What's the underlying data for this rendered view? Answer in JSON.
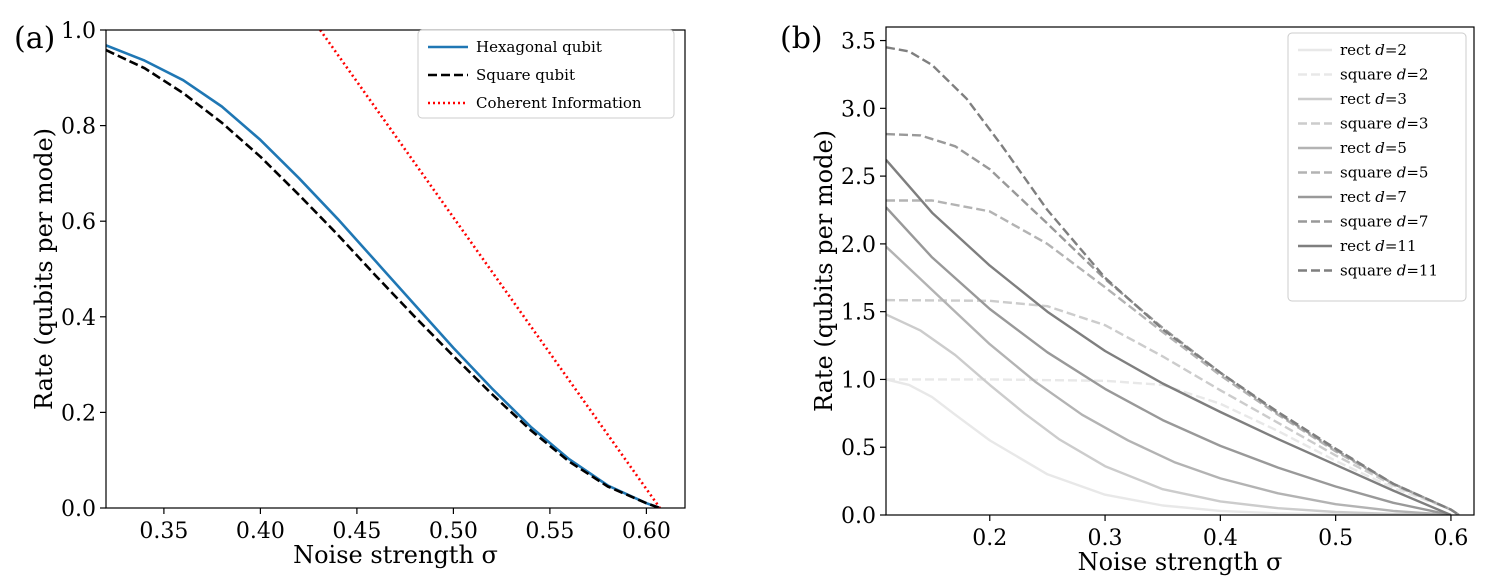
{
  "chart_data": [
    {
      "panel": "(a)",
      "type": "line",
      "xlabel": "Noise strength σ",
      "ylabel": "Rate (qubits per mode)",
      "xlim": [
        0.32,
        0.62
      ],
      "ylim": [
        0.0,
        1.0
      ],
      "xticks": [
        0.35,
        0.4,
        0.45,
        0.5,
        0.55,
        0.6
      ],
      "xtick_labels": [
        "0.35",
        "0.40",
        "0.45",
        "0.50",
        "0.55",
        "0.60"
      ],
      "yticks": [
        0.0,
        0.2,
        0.4,
        0.6,
        0.8,
        1.0
      ],
      "ytick_labels": [
        "0.0",
        "0.2",
        "0.4",
        "0.6",
        "0.8",
        "1.0"
      ],
      "legend_position": "top-right",
      "series": [
        {
          "name": "Hexagonal qubit",
          "color": "#1f77b4",
          "dash": "solid",
          "x": [
            0.32,
            0.34,
            0.36,
            0.38,
            0.4,
            0.42,
            0.44,
            0.46,
            0.48,
            0.5,
            0.52,
            0.54,
            0.56,
            0.58,
            0.6,
            0.607
          ],
          "y": [
            0.968,
            0.936,
            0.895,
            0.84,
            0.77,
            0.69,
            0.605,
            0.515,
            0.425,
            0.335,
            0.25,
            0.17,
            0.102,
            0.047,
            0.01,
            0.0
          ]
        },
        {
          "name": "Square qubit",
          "color": "#000000",
          "dash": "dashed",
          "x": [
            0.32,
            0.34,
            0.36,
            0.38,
            0.4,
            0.42,
            0.44,
            0.46,
            0.48,
            0.5,
            0.52,
            0.54,
            0.56,
            0.58,
            0.6,
            0.607
          ],
          "y": [
            0.958,
            0.92,
            0.868,
            0.806,
            0.735,
            0.655,
            0.572,
            0.485,
            0.4,
            0.318,
            0.238,
            0.163,
            0.097,
            0.045,
            0.01,
            0.0
          ]
        },
        {
          "name": "Coherent Information",
          "color": "#ff0000",
          "dash": "dotted",
          "x": [
            0.431,
            0.607
          ],
          "y": [
            1.0,
            0.0
          ]
        }
      ]
    },
    {
      "panel": "(b)",
      "type": "line",
      "xlabel": "Noise strength σ",
      "ylabel": "Rate (qubits per mode)",
      "xlim": [
        0.11,
        0.62
      ],
      "ylim": [
        0.0,
        3.6
      ],
      "xticks": [
        0.2,
        0.3,
        0.4,
        0.5,
        0.6
      ],
      "xtick_labels": [
        "0.2",
        "0.3",
        "0.4",
        "0.5",
        "0.6"
      ],
      "yticks": [
        0.0,
        0.5,
        1.0,
        1.5,
        2.0,
        2.5,
        3.0,
        3.5
      ],
      "ytick_labels": [
        "0.0",
        "0.5",
        "1.0",
        "1.5",
        "2.0",
        "2.5",
        "3.0",
        "3.5"
      ],
      "legend_position": "top-right",
      "series": [
        {
          "name": "rect d=2",
          "label_prefix": "rect ",
          "d": "2",
          "color": "#e8e8e8",
          "dash": "solid",
          "x": [
            0.11,
            0.13,
            0.15,
            0.17,
            0.2,
            0.25,
            0.3,
            0.35,
            0.4,
            0.45,
            0.5,
            0.55,
            0.6
          ],
          "y": [
            1.0,
            0.96,
            0.87,
            0.74,
            0.55,
            0.3,
            0.15,
            0.07,
            0.03,
            0.012,
            0.005,
            0.002,
            0.0
          ]
        },
        {
          "name": "square d=2",
          "label_prefix": "square ",
          "d": "2",
          "color": "#e8e8e8",
          "dash": "dashed",
          "x": [
            0.11,
            0.2,
            0.3,
            0.35,
            0.4,
            0.45,
            0.5,
            0.55,
            0.6,
            0.607
          ],
          "y": [
            1.0,
            1.0,
            0.99,
            0.96,
            0.82,
            0.62,
            0.4,
            0.2,
            0.04,
            0.0
          ]
        },
        {
          "name": "rect d=3",
          "label_prefix": "rect ",
          "d": "3",
          "color": "#cccccc",
          "dash": "solid",
          "x": [
            0.11,
            0.14,
            0.17,
            0.2,
            0.23,
            0.26,
            0.3,
            0.35,
            0.4,
            0.45,
            0.5,
            0.55,
            0.6
          ],
          "y": [
            1.48,
            1.36,
            1.18,
            0.96,
            0.75,
            0.56,
            0.36,
            0.19,
            0.1,
            0.05,
            0.022,
            0.008,
            0.0
          ]
        },
        {
          "name": "square d=3",
          "label_prefix": "square ",
          "d": "3",
          "color": "#cccccc",
          "dash": "dashed",
          "x": [
            0.11,
            0.2,
            0.25,
            0.3,
            0.35,
            0.4,
            0.45,
            0.5,
            0.55,
            0.6,
            0.607
          ],
          "y": [
            1.585,
            1.58,
            1.54,
            1.4,
            1.17,
            0.92,
            0.68,
            0.44,
            0.22,
            0.04,
            0.0
          ]
        },
        {
          "name": "rect d=5",
          "label_prefix": "rect ",
          "d": "5",
          "color": "#b3b3b3",
          "dash": "solid",
          "x": [
            0.11,
            0.14,
            0.17,
            0.2,
            0.24,
            0.28,
            0.32,
            0.36,
            0.4,
            0.45,
            0.5,
            0.55,
            0.6
          ],
          "y": [
            1.98,
            1.74,
            1.5,
            1.26,
            0.98,
            0.74,
            0.55,
            0.39,
            0.27,
            0.16,
            0.08,
            0.03,
            0.0
          ]
        },
        {
          "name": "square d=5",
          "label_prefix": "square ",
          "d": "5",
          "color": "#b3b3b3",
          "dash": "dashed",
          "x": [
            0.11,
            0.15,
            0.2,
            0.25,
            0.3,
            0.35,
            0.4,
            0.45,
            0.5,
            0.55,
            0.6,
            0.607
          ],
          "y": [
            2.32,
            2.32,
            2.24,
            2.0,
            1.68,
            1.35,
            1.03,
            0.74,
            0.47,
            0.23,
            0.04,
            0.0
          ]
        },
        {
          "name": "rect d=7",
          "label_prefix": "rect ",
          "d": "7",
          "color": "#999999",
          "dash": "solid",
          "x": [
            0.11,
            0.15,
            0.2,
            0.25,
            0.3,
            0.35,
            0.4,
            0.45,
            0.5,
            0.55,
            0.6
          ],
          "y": [
            2.27,
            1.9,
            1.52,
            1.2,
            0.93,
            0.7,
            0.51,
            0.35,
            0.21,
            0.09,
            0.0
          ]
        },
        {
          "name": "square d=7",
          "label_prefix": "square ",
          "d": "7",
          "color": "#999999",
          "dash": "dashed",
          "x": [
            0.11,
            0.14,
            0.17,
            0.2,
            0.25,
            0.3,
            0.35,
            0.4,
            0.45,
            0.5,
            0.55,
            0.6,
            0.607
          ],
          "y": [
            2.81,
            2.8,
            2.72,
            2.55,
            2.15,
            1.74,
            1.38,
            1.05,
            0.75,
            0.48,
            0.23,
            0.04,
            0.0
          ]
        },
        {
          "name": "rect d=11",
          "label_prefix": "rect ",
          "d": "11",
          "color": "#7f7f7f",
          "dash": "solid",
          "x": [
            0.11,
            0.15,
            0.2,
            0.25,
            0.3,
            0.35,
            0.4,
            0.45,
            0.5,
            0.55,
            0.6
          ],
          "y": [
            2.62,
            2.23,
            1.84,
            1.5,
            1.21,
            0.97,
            0.76,
            0.56,
            0.37,
            0.18,
            0.0
          ]
        },
        {
          "name": "square d=11",
          "label_prefix": "square ",
          "d": "11",
          "color": "#7f7f7f",
          "dash": "dashed",
          "x": [
            0.11,
            0.13,
            0.15,
            0.18,
            0.21,
            0.25,
            0.3,
            0.35,
            0.4,
            0.45,
            0.5,
            0.55,
            0.6,
            0.607
          ],
          "y": [
            3.45,
            3.42,
            3.32,
            3.07,
            2.73,
            2.25,
            1.75,
            1.37,
            1.05,
            0.76,
            0.49,
            0.23,
            0.04,
            0.0
          ]
        }
      ]
    }
  ]
}
